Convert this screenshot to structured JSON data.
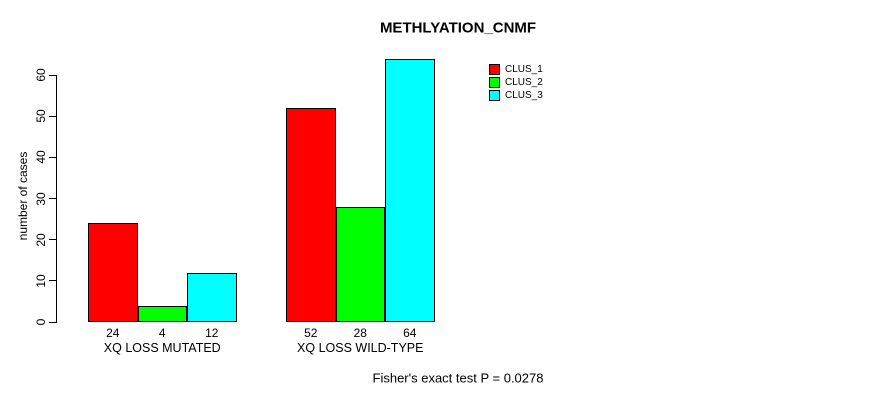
{
  "chart_data": {
    "type": "bar",
    "title": "METHLYATION_CNMF",
    "ylabel": "number of cases",
    "xlabel": "",
    "categories": [
      "XQ LOSS MUTATED",
      "XQ LOSS WILD-TYPE"
    ],
    "series": [
      {
        "name": "CLUS_1",
        "color": "#ff0000",
        "values": [
          24,
          52
        ]
      },
      {
        "name": "CLUS_2",
        "color": "#00ff00",
        "values": [
          4,
          28
        ]
      },
      {
        "name": "CLUS_3",
        "color": "#00ffff",
        "values": [
          12,
          64
        ]
      }
    ],
    "ylim": [
      0,
      60
    ],
    "yticks": [
      0,
      10,
      20,
      30,
      40,
      50,
      60
    ],
    "grid": false,
    "bar_borders": "#000000",
    "bar_value_labels_shown": true,
    "legend_position": "top-right",
    "annotation": "Fisher's exact test P = 0.0278"
  }
}
